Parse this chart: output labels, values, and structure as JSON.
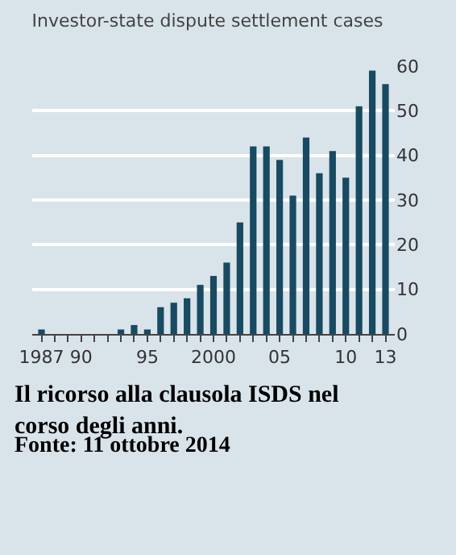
{
  "chart_data": {
    "type": "bar",
    "title": "Investor-state dispute settlement cases",
    "x": [
      1987,
      1988,
      1989,
      1990,
      1991,
      1992,
      1993,
      1994,
      1995,
      1996,
      1997,
      1998,
      1999,
      2000,
      2001,
      2002,
      2003,
      2004,
      2005,
      2006,
      2007,
      2008,
      2009,
      2010,
      2011,
      2012,
      2013
    ],
    "values": [
      1,
      0,
      0,
      0,
      0,
      0,
      1,
      2,
      1,
      6,
      7,
      8,
      11,
      13,
      16,
      25,
      42,
      42,
      39,
      31,
      44,
      36,
      41,
      35,
      51,
      59,
      56
    ],
    "color": "#184a62",
    "xlim": [
      1986.3,
      2013.7
    ],
    "xticks": [
      1987,
      {
        "value": 1988,
        "label": null
      },
      {
        "value": 1989,
        "label": null
      },
      {
        "value": 1990,
        "label": "90"
      },
      {
        "value": 1991,
        "label": null
      },
      {
        "value": 1992,
        "label": null
      },
      {
        "value": 1993,
        "label": null
      },
      {
        "value": 1994,
        "label": null
      },
      {
        "value": 1995,
        "label": "95"
      },
      {
        "value": 1996,
        "label": null
      },
      {
        "value": 1997,
        "label": null
      },
      {
        "value": 1998,
        "label": null
      },
      {
        "value": 1999,
        "label": null
      },
      2000,
      {
        "value": 2001,
        "label": null
      },
      {
        "value": 2002,
        "label": null
      },
      {
        "value": 2003,
        "label": null
      },
      {
        "value": 2004,
        "label": null
      },
      {
        "value": 2005,
        "label": "05"
      },
      {
        "value": 2006,
        "label": null
      },
      {
        "value": 2007,
        "label": null
      },
      {
        "value": 2008,
        "label": null
      },
      {
        "value": 2009,
        "label": null
      },
      {
        "value": 2010,
        "label": "10"
      },
      {
        "value": 2011,
        "label": null
      },
      {
        "value": 2012,
        "label": null
      },
      {
        "value": 2013,
        "label": "13"
      }
    ],
    "ylim": [
      0,
      60
    ],
    "yticks": [
      0,
      10,
      20,
      30,
      40,
      50,
      60
    ],
    "grid": "y",
    "legend": false,
    "annotations": [
      "Il ricorso alla clausola ISDS nel corso degli anni.",
      "Fonte: 11 ottobre 2014"
    ]
  }
}
